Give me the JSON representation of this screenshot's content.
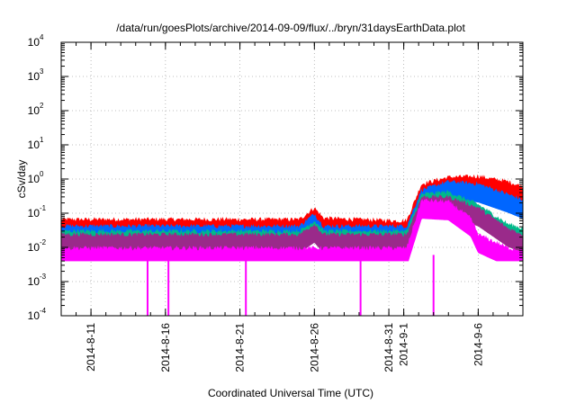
{
  "chart_data": {
    "type": "line",
    "title": "/data/run/goesPlots/archive/2014-09-09/flux/../bryn/31daysEarthData.plot",
    "xlabel": "Coordinated Universal Time (UTC)",
    "ylabel": "cSv/day",
    "yscale": "log",
    "ylim": [
      0.0001,
      10000
    ],
    "xlim": [
      0,
      31
    ],
    "grid": true,
    "y_ticks": [
      {
        "base": "10",
        "exp": "-4",
        "value": 0.0001
      },
      {
        "base": "10",
        "exp": "-3",
        "value": 0.001
      },
      {
        "base": "10",
        "exp": "-2",
        "value": 0.01
      },
      {
        "base": "10",
        "exp": "-1",
        "value": 0.1
      },
      {
        "base": "10",
        "exp": "0",
        "value": 1
      },
      {
        "base": "10",
        "exp": "1",
        "value": 10
      },
      {
        "base": "10",
        "exp": "2",
        "value": 100
      },
      {
        "base": "10",
        "exp": "3",
        "value": 1000
      },
      {
        "base": "10",
        "exp": "4",
        "value": 10000
      }
    ],
    "x_ticks": [
      {
        "label": "2014-8-11",
        "day": 2
      },
      {
        "label": "2014-8-16",
        "day": 7
      },
      {
        "label": "2014-8-21",
        "day": 12
      },
      {
        "label": "2014-8-26",
        "day": 17
      },
      {
        "label": "2014-8-31",
        "day": 22
      },
      {
        "label": "2014-9-1",
        "day": 23
      },
      {
        "label": "2014-9-6",
        "day": 28
      }
    ],
    "x_tick_unit": "days since 2014-08-09",
    "series": [
      {
        "color": "#ff0000",
        "points": [
          [
            0,
            0.055
          ],
          [
            16,
            0.055
          ],
          [
            17,
            0.12
          ],
          [
            17.6,
            0.06
          ],
          [
            22.5,
            0.05
          ],
          [
            23.2,
            0.05
          ],
          [
            24.2,
            0.6
          ],
          [
            26,
            0.95
          ],
          [
            28,
            1.0
          ],
          [
            30,
            0.7
          ],
          [
            31,
            0.5
          ]
        ]
      },
      {
        "color": "#0066ff",
        "points": [
          [
            0,
            0.035
          ],
          [
            16,
            0.035
          ],
          [
            17,
            0.08
          ],
          [
            17.6,
            0.035
          ],
          [
            22.5,
            0.035
          ],
          [
            23.2,
            0.035
          ],
          [
            24.2,
            0.4
          ],
          [
            26,
            0.7
          ],
          [
            28,
            0.6
          ],
          [
            30,
            0.3
          ],
          [
            31,
            0.2
          ]
        ]
      },
      {
        "color": "#00b98a",
        "points": [
          [
            0,
            0.025
          ],
          [
            16,
            0.025
          ],
          [
            17,
            0.05
          ],
          [
            17.6,
            0.025
          ],
          [
            22.5,
            0.025
          ],
          [
            23.2,
            0.025
          ],
          [
            24.2,
            0.3
          ],
          [
            26,
            0.35
          ],
          [
            28,
            0.15
          ],
          [
            30,
            0.04
          ],
          [
            31,
            0.03
          ]
        ]
      },
      {
        "color": "#9a2a8a",
        "points": [
          [
            0,
            0.02
          ],
          [
            16,
            0.02
          ],
          [
            17,
            0.04
          ],
          [
            17.6,
            0.02
          ],
          [
            22.5,
            0.02
          ],
          [
            23.2,
            0.02
          ],
          [
            24.2,
            0.25
          ],
          [
            26,
            0.25
          ],
          [
            28,
            0.12
          ],
          [
            30,
            0.03
          ],
          [
            31,
            0.02
          ]
        ]
      },
      {
        "color": "#ff00ff",
        "points": [
          [
            0,
            0.008
          ],
          [
            16,
            0.008
          ],
          [
            17.6,
            0.008
          ],
          [
            22.5,
            0.008
          ],
          [
            23.2,
            0.008
          ],
          [
            24.2,
            0.2
          ],
          [
            26,
            0.18
          ],
          [
            27.5,
            0.06
          ],
          [
            28,
            0.02
          ],
          [
            30,
            0.008
          ],
          [
            31,
            0.007
          ]
        ]
      }
    ],
    "dips": [
      {
        "day": 5.8,
        "value": 0.0001
      },
      {
        "day": 7.2,
        "value": 0.0001
      },
      {
        "day": 12.4,
        "value": 0.0001
      },
      {
        "day": 20.1,
        "value": 0.0001
      },
      {
        "day": 25.0,
        "value": 0.0001
      }
    ]
  }
}
